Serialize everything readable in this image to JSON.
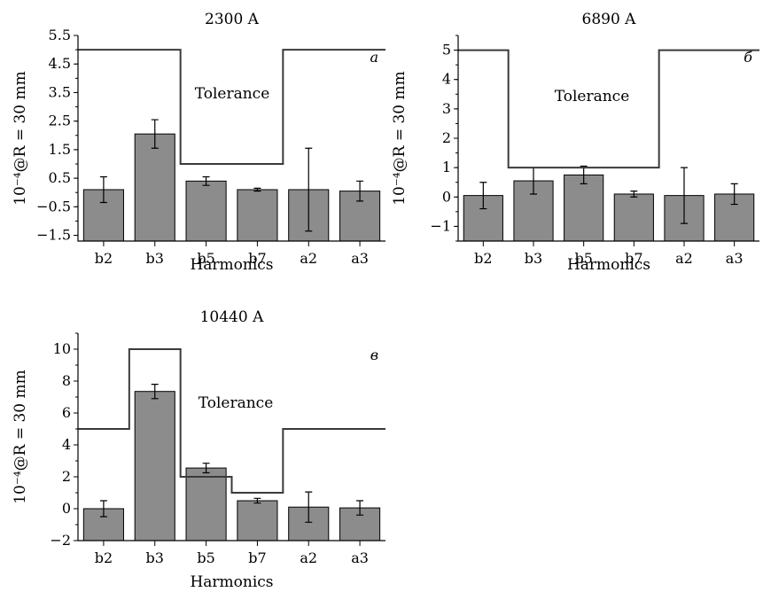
{
  "chart_data": [
    {
      "type": "bar",
      "title": "2300 A",
      "panel_label": "a",
      "xlabel": "Harmonics",
      "ylabel": "10⁻⁴@R = 30 mm",
      "categories": [
        "b2",
        "b3",
        "b5",
        "b7",
        "a2",
        "a3"
      ],
      "values": [
        0.1,
        2.05,
        0.4,
        0.1,
        0.1,
        0.05
      ],
      "errors": [
        0.45,
        0.5,
        0.15,
        0.05,
        1.45,
        0.35
      ],
      "ylim": [
        -1.7,
        5.5
      ],
      "yticks": [
        -1.5,
        -0.5,
        0.5,
        1.5,
        2.5,
        3.5,
        4.5,
        5.5
      ],
      "ytick_labels": [
        "−1.5",
        "−0.5",
        "0.5",
        "1.5",
        "2.5",
        "3.5",
        "4.5",
        "5.5"
      ],
      "tolerance": [
        5.0,
        5.0,
        1.0,
        1.0,
        5.0,
        5.0
      ],
      "annotation": "Tolerance"
    },
    {
      "type": "bar",
      "title": "6890 A",
      "panel_label": "б",
      "xlabel": "Harmonics",
      "ylabel": "10⁻⁴@R = 30 mm",
      "categories": [
        "b2",
        "b3",
        "b5",
        "b7",
        "a2",
        "a3"
      ],
      "values": [
        0.05,
        0.55,
        0.75,
        0.1,
        0.05,
        0.1
      ],
      "errors": [
        0.45,
        0.45,
        0.3,
        0.1,
        0.95,
        0.35
      ],
      "ylim": [
        -1.5,
        5.5
      ],
      "yticks": [
        -1,
        0,
        1,
        2,
        3,
        4,
        5
      ],
      "ytick_labels": [
        "−1",
        "0",
        "1",
        "2",
        "3",
        "4",
        "5"
      ],
      "tolerance": [
        5.0,
        1.0,
        1.0,
        1.0,
        5.0,
        5.0
      ],
      "annotation": "Tolerance"
    },
    {
      "type": "bar",
      "title": "10440 A",
      "panel_label": "в",
      "xlabel": "Harmonics",
      "ylabel": "10⁻⁴@R = 30 mm",
      "categories": [
        "b2",
        "b3",
        "b5",
        "b7",
        "a2",
        "a3"
      ],
      "values": [
        0.0,
        7.35,
        2.55,
        0.5,
        0.1,
        0.05
      ],
      "errors": [
        0.5,
        0.45,
        0.3,
        0.15,
        0.95,
        0.45
      ],
      "ylim": [
        -2,
        11
      ],
      "yticks": [
        -2,
        0,
        2,
        4,
        6,
        8,
        10
      ],
      "ytick_labels": [
        "−2",
        "0",
        "2",
        "4",
        "6",
        "8",
        "10"
      ],
      "tolerance": [
        5.0,
        10.0,
        2.0,
        1.0,
        5.0,
        5.0
      ],
      "annotation": "Tolerance"
    }
  ]
}
